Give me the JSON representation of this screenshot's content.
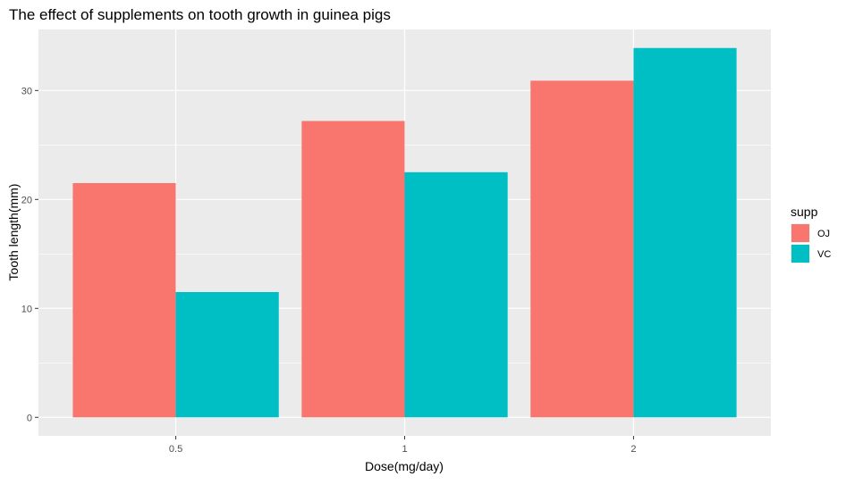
{
  "chart_data": {
    "type": "bar",
    "title": "The effect of supplements on tooth growth in guinea pigs",
    "xlabel": "Dose(mg/day)",
    "ylabel": "Tooth length(mm)",
    "categories": [
      "0.5",
      "1",
      "2"
    ],
    "series": [
      {
        "name": "OJ",
        "values": [
          21.5,
          27.2,
          30.9
        ]
      },
      {
        "name": "VC",
        "values": [
          11.5,
          22.5,
          33.9
        ]
      }
    ],
    "ylim": [
      -1.7,
      35.6
    ],
    "yticks": [
      0,
      10,
      20,
      30
    ],
    "grid": true,
    "legend_title": "supp",
    "legend_position": "right",
    "colors": {
      "OJ": "#F8766D",
      "VC": "#00BFC4",
      "panel": "#EBEBEB",
      "grid": "#FFFFFF"
    }
  }
}
